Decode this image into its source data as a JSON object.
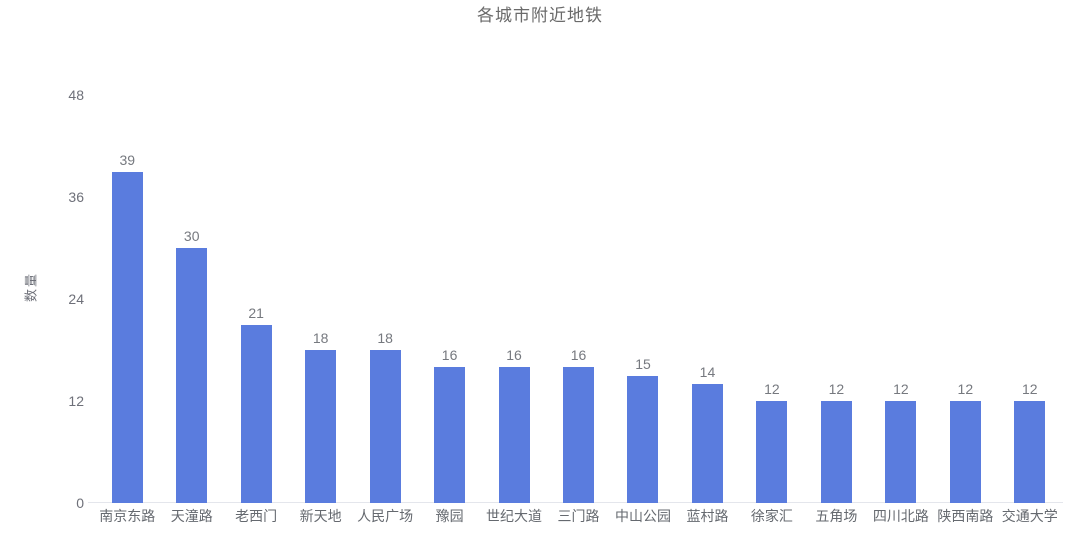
{
  "chart_data": {
    "type": "bar",
    "title": "各城市附近地铁",
    "categories": [
      "南京东路",
      "天潼路",
      "老西门",
      "新天地",
      "人民广场",
      "豫园",
      "世纪大道",
      "三门路",
      "中山公园",
      "蓝村路",
      "徐家汇",
      "五角场",
      "四川北路",
      "陕西南路",
      "交通大学"
    ],
    "values": [
      39,
      30,
      21,
      18,
      18,
      16,
      16,
      16,
      15,
      14,
      12,
      12,
      12,
      12,
      12
    ],
    "xlabel": "",
    "ylabel": "数量",
    "ylim": [
      0,
      48
    ],
    "yticks": [
      0,
      12,
      24,
      36,
      48
    ],
    "grid": false,
    "legend_position": "none",
    "value_labels": "above-bars",
    "bar_color": "#5a7cde",
    "axis_line_color": "#e4e6ec",
    "title_color": "#6a6a6a",
    "axis_text_color": "#6e7079",
    "value_label_color": "#76797f",
    "background_color": "#ffffff"
  }
}
